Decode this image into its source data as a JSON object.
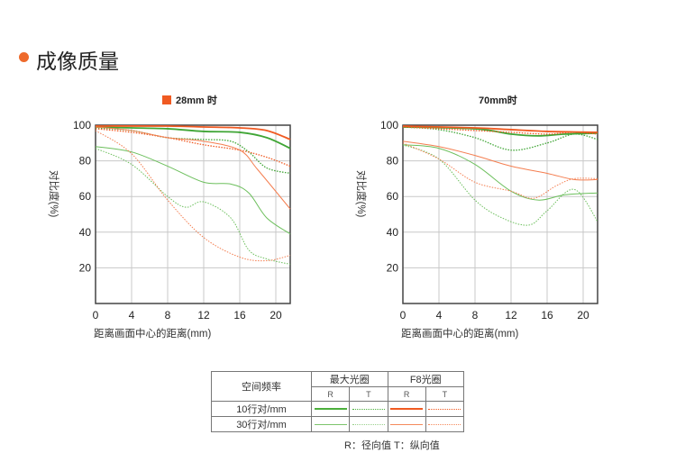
{
  "header": {
    "title": "成像质量"
  },
  "colors": {
    "green": "#4caf3c",
    "orange": "#f05a22",
    "accent": "#ee6a2c"
  },
  "chart_data": [
    {
      "type": "line",
      "title": "28mm 时",
      "xlabel": "距离画面中心的距离(mm)",
      "ylabel": "对比度(%)",
      "xlim": [
        0,
        21.6
      ],
      "ylim": [
        0,
        100
      ],
      "xticks": [
        0,
        4,
        8,
        12,
        16,
        20
      ],
      "yticks": [
        20,
        40,
        60,
        80,
        100
      ],
      "grid": true,
      "series": [
        {
          "name": "最大光圈 10行对/mm R",
          "color": "green",
          "style": "solid",
          "weight": "thick",
          "points": [
            [
              0,
              99
            ],
            [
              4,
              98.5
            ],
            [
              8,
              98
            ],
            [
              12,
              96.5
            ],
            [
              16,
              96
            ],
            [
              19,
              93
            ],
            [
              21.6,
              87
            ]
          ]
        },
        {
          "name": "最大光圈 10行对/mm T",
          "color": "green",
          "style": "dotted",
          "weight": "thick",
          "points": [
            [
              0,
              98.5
            ],
            [
              4,
              97
            ],
            [
              8,
              93
            ],
            [
              12,
              92
            ],
            [
              15,
              91
            ],
            [
              17,
              85
            ],
            [
              19,
              76
            ],
            [
              21.6,
              73
            ]
          ]
        },
        {
          "name": "F8光圈 10行对/mm R",
          "color": "orange",
          "style": "solid",
          "weight": "thick",
          "points": [
            [
              0,
              99.5
            ],
            [
              8,
              99.5
            ],
            [
              12,
              99
            ],
            [
              16,
              98.5
            ],
            [
              19,
              97
            ],
            [
              21.6,
              92
            ]
          ]
        },
        {
          "name": "F8光圈 10行对/mm T",
          "color": "orange",
          "style": "dotted",
          "weight": "thick",
          "points": [
            [
              0,
              98
            ],
            [
              4,
              96
            ],
            [
              8,
              93
            ],
            [
              12,
              89
            ],
            [
              16,
              86
            ],
            [
              19,
              82
            ],
            [
              21.6,
              77
            ]
          ]
        },
        {
          "name": "最大光圈 30行对/mm R",
          "color": "green",
          "style": "solid",
          "weight": "thin",
          "points": [
            [
              0,
              88
            ],
            [
              4,
              85
            ],
            [
              8,
              77
            ],
            [
              12,
              68
            ],
            [
              15,
              67
            ],
            [
              17,
              62
            ],
            [
              19,
              48
            ],
            [
              21.6,
              39
            ]
          ]
        },
        {
          "name": "最大光圈 30行对/mm T",
          "color": "green",
          "style": "dotted",
          "weight": "thin",
          "points": [
            [
              0,
              87
            ],
            [
              4,
              78
            ],
            [
              8,
              60
            ],
            [
              10,
              54
            ],
            [
              12,
              57
            ],
            [
              15,
              48
            ],
            [
              17,
              30
            ],
            [
              19,
              25
            ],
            [
              21.6,
              22
            ]
          ]
        },
        {
          "name": "F8光圈 30行对/mm R",
          "color": "orange",
          "style": "solid",
          "weight": "thin",
          "points": [
            [
              0,
              99
            ],
            [
              4,
              97
            ],
            [
              8,
              93
            ],
            [
              12,
              91
            ],
            [
              16,
              86
            ],
            [
              18,
              75
            ],
            [
              21.6,
              53
            ]
          ]
        },
        {
          "name": "F8光圈 30行对/mm T",
          "color": "orange",
          "style": "dotted",
          "weight": "thin",
          "points": [
            [
              0,
              97
            ],
            [
              4,
              84
            ],
            [
              8,
              58
            ],
            [
              12,
              37
            ],
            [
              16,
              26
            ],
            [
              19,
              24
            ],
            [
              21.6,
              27
            ]
          ]
        }
      ]
    },
    {
      "type": "line",
      "title": "70mm时",
      "xlabel": "距离画面中心的距离(mm)",
      "ylabel": "对比度(%)",
      "xlim": [
        0,
        21.6
      ],
      "ylim": [
        0,
        100
      ],
      "xticks": [
        0,
        4,
        8,
        12,
        16,
        20
      ],
      "yticks": [
        20,
        40,
        60,
        80,
        100
      ],
      "grid": true,
      "series": [
        {
          "name": "最大光圈 10行对/mm R",
          "color": "green",
          "style": "solid",
          "weight": "thick",
          "points": [
            [
              0,
              99
            ],
            [
              8,
              98
            ],
            [
              12,
              95
            ],
            [
              15,
              94
            ],
            [
              18,
              95
            ],
            [
              21.6,
              95.5
            ]
          ]
        },
        {
          "name": "最大光圈 10行对/mm T",
          "color": "green",
          "style": "dotted",
          "weight": "thick",
          "points": [
            [
              0,
              99
            ],
            [
              4,
              97.5
            ],
            [
              8,
              93
            ],
            [
              12,
              86
            ],
            [
              16,
              90
            ],
            [
              19,
              95
            ],
            [
              21.6,
              92
            ]
          ]
        },
        {
          "name": "F8光圈 10行对/mm R",
          "color": "orange",
          "style": "solid",
          "weight": "thick",
          "points": [
            [
              0,
              99.5
            ],
            [
              8,
              98.5
            ],
            [
              12,
              97.5
            ],
            [
              16,
              96.5
            ],
            [
              21.6,
              96
            ]
          ]
        },
        {
          "name": "F8光圈 10行对/mm T",
          "color": "orange",
          "style": "dotted",
          "weight": "thick",
          "points": [
            [
              0,
              99
            ],
            [
              4,
              98
            ],
            [
              8,
              97
            ],
            [
              12,
              96
            ],
            [
              16,
              95
            ],
            [
              19,
              96
            ],
            [
              21.6,
              95
            ]
          ]
        },
        {
          "name": "最大光圈 30行对/mm R",
          "color": "green",
          "style": "solid",
          "weight": "thin",
          "points": [
            [
              0,
              89
            ],
            [
              4,
              87
            ],
            [
              8,
              78
            ],
            [
              12,
              63
            ],
            [
              15,
              58
            ],
            [
              18,
              61
            ],
            [
              21.6,
              62
            ]
          ]
        },
        {
          "name": "最大光圈 30行对/mm T",
          "color": "green",
          "style": "dotted",
          "weight": "thin",
          "points": [
            [
              0,
              89
            ],
            [
              4,
              81
            ],
            [
              8,
              58
            ],
            [
              11,
              48
            ],
            [
              14,
              44
            ],
            [
              16,
              52
            ],
            [
              19,
              64
            ],
            [
              21.6,
              46
            ]
          ]
        },
        {
          "name": "F8光圈 30行对/mm R",
          "color": "orange",
          "style": "solid",
          "weight": "thin",
          "points": [
            [
              0,
              91
            ],
            [
              4,
              88
            ],
            [
              8,
              83
            ],
            [
              12,
              77
            ],
            [
              16,
              73
            ],
            [
              19,
              69.5
            ],
            [
              21.6,
              69.5
            ]
          ]
        },
        {
          "name": "F8光圈 30行对/mm T",
          "color": "orange",
          "style": "dotted",
          "weight": "thin",
          "points": [
            [
              0,
              90
            ],
            [
              4,
              81
            ],
            [
              8,
              68
            ],
            [
              12,
              63
            ],
            [
              14.5,
              59
            ],
            [
              17,
              66
            ],
            [
              19,
              70
            ],
            [
              21.6,
              70
            ]
          ]
        }
      ]
    }
  ],
  "legend": {
    "freq_header": "空间频率",
    "max_aperture": "最大光圈",
    "f8_aperture": "F8光圈",
    "r": "R",
    "t": "T",
    "row1": "10行对/mm",
    "row2": "30行对/mm",
    "note": "R：径向值  T：纵向值"
  }
}
